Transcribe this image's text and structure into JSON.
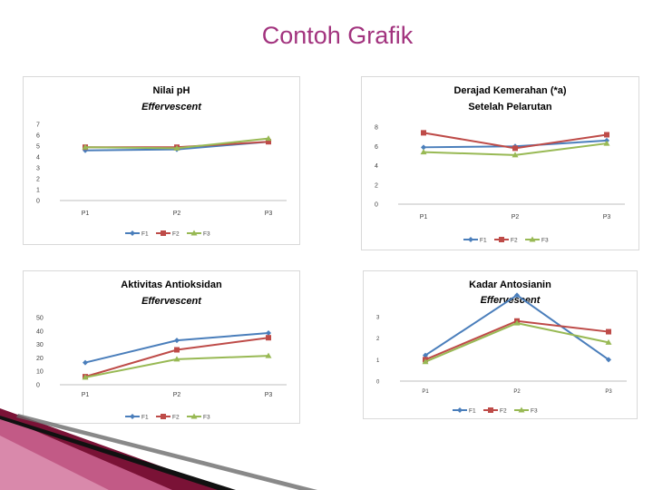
{
  "slide": {
    "title": "Contoh Grafik"
  },
  "colors": {
    "F1": "#4a7ebb",
    "F2": "#be4b48",
    "F3": "#98b954",
    "title": "#a2337e"
  },
  "chart_data": [
    {
      "type": "line",
      "title": "Nilai pH",
      "subtitle": "Effervescent",
      "categories": [
        "P1",
        "P2",
        "P3"
      ],
      "ylim": [
        0,
        7
      ],
      "yticks": [
        "0",
        "1",
        "2",
        "3",
        "4",
        "5",
        "6",
        "7"
      ],
      "grid": false,
      "legend": "bottom",
      "series": [
        {
          "name": "F1",
          "values": [
            4.6,
            4.7,
            5.4
          ]
        },
        {
          "name": "F2",
          "values": [
            4.9,
            4.9,
            5.4
          ]
        },
        {
          "name": "F3",
          "values": [
            4.9,
            4.8,
            5.7
          ]
        }
      ]
    },
    {
      "type": "line",
      "title": "Derajad Kemerahan (*a)",
      "subtitle": "Setelah Pelarutan",
      "categories": [
        "P1",
        "P2",
        "P3"
      ],
      "ylim": [
        0,
        8
      ],
      "yticks": [
        "0",
        "2",
        "4",
        "6",
        "8"
      ],
      "grid": false,
      "legend": "bottom",
      "series": [
        {
          "name": "F1",
          "values": [
            5.9,
            6.0,
            6.6
          ]
        },
        {
          "name": "F2",
          "values": [
            7.4,
            5.8,
            7.2
          ]
        },
        {
          "name": "F3",
          "values": [
            5.4,
            5.1,
            6.3
          ]
        }
      ]
    },
    {
      "type": "line",
      "title": "Aktivitas Antioksidan",
      "subtitle": "Effervescent",
      "categories": [
        "P1",
        "P2",
        "P3"
      ],
      "ylim": [
        0,
        50
      ],
      "yticks": [
        "0",
        "10",
        "20",
        "30",
        "40",
        "50"
      ],
      "grid": false,
      "legend": "bottom",
      "series": [
        {
          "name": "F1",
          "values": [
            16.5,
            33,
            38.5
          ]
        },
        {
          "name": "F2",
          "values": [
            6,
            26,
            35
          ]
        },
        {
          "name": "F3",
          "values": [
            5.5,
            19,
            21.5
          ]
        }
      ]
    },
    {
      "type": "line",
      "title": "Kadar Antosianin",
      "subtitle": "Effervescent",
      "categories": [
        "P1",
        "P2",
        "P3"
      ],
      "ylim": [
        0,
        3
      ],
      "yticks": [
        "0",
        "1",
        "2",
        "3"
      ],
      "grid": false,
      "legend": "bottom",
      "series": [
        {
          "name": "F1",
          "values": [
            1.2,
            4.0,
            1.0
          ]
        },
        {
          "name": "F2",
          "values": [
            1.0,
            2.8,
            2.3
          ]
        },
        {
          "name": "F3",
          "values": [
            0.9,
            2.7,
            1.8
          ]
        }
      ]
    }
  ]
}
